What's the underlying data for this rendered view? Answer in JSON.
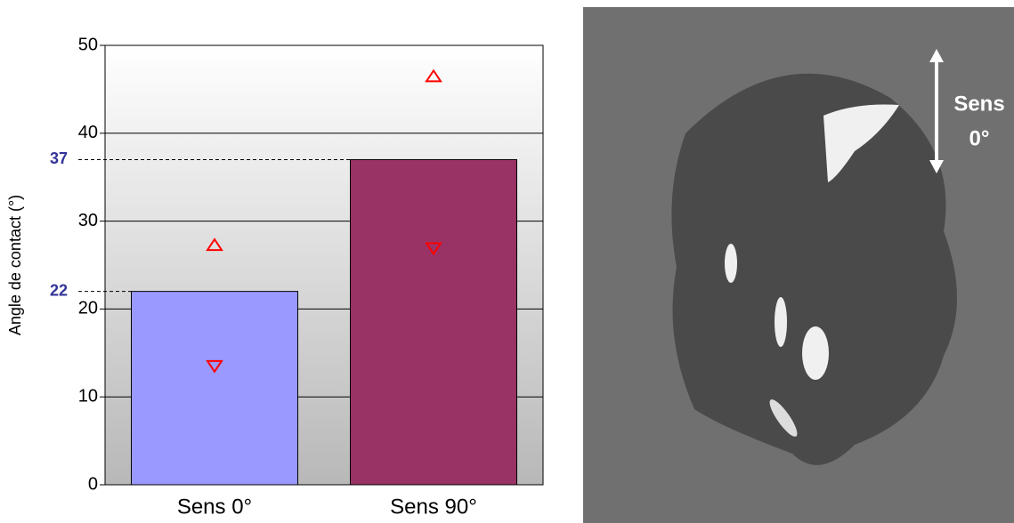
{
  "chart_data": {
    "type": "bar",
    "y_label": "Angle de contact (°)",
    "categories": [
      "Sens 0°",
      "Sens 90°"
    ],
    "values": [
      22,
      37
    ],
    "colors": [
      "#9999ff",
      "#993366"
    ],
    "max_values": [
      27.2,
      46.4
    ],
    "min_values": [
      13.6,
      27.0
    ],
    "marker_color": "#ff0000",
    "ylim": [
      0,
      50
    ],
    "yticks": [
      0,
      10,
      20,
      30,
      40,
      50
    ],
    "grid": true
  },
  "photo": {
    "caption": [
      "Sens",
      "0°"
    ]
  }
}
